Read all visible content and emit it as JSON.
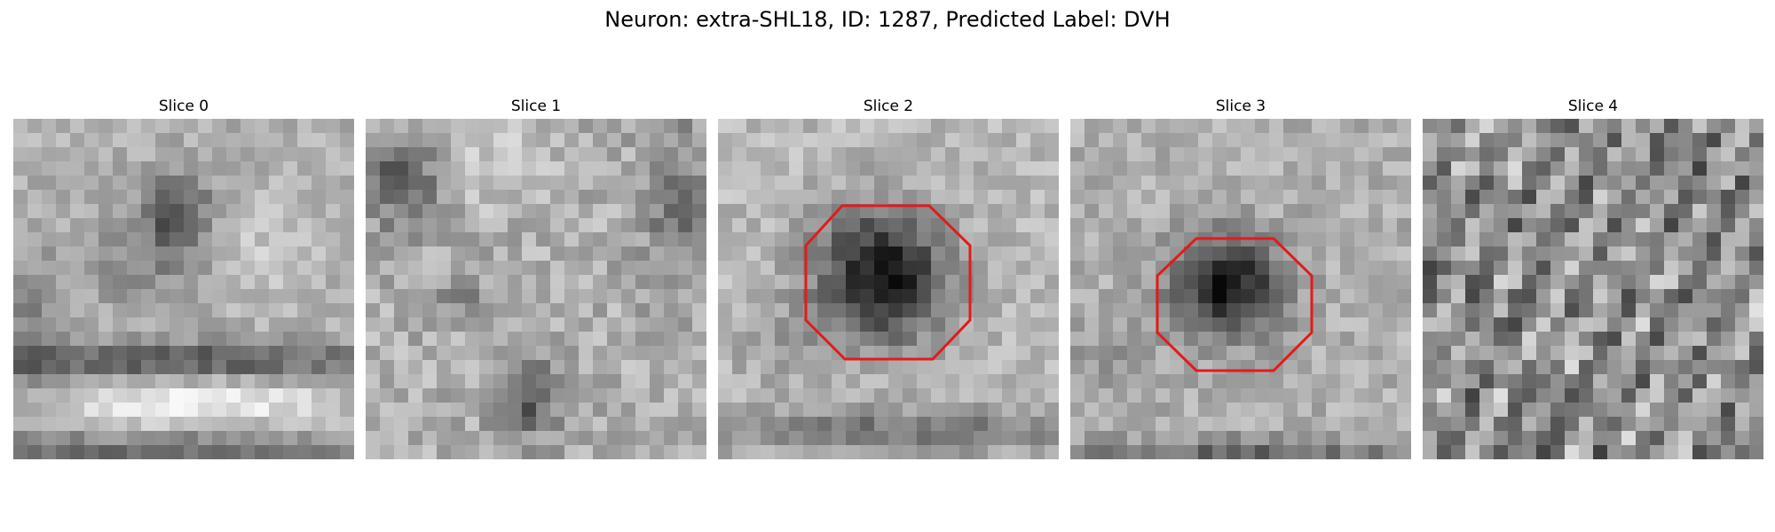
{
  "figure": {
    "title": "Neuron: extra-SHL18, ID: 1287, Predicted Label: DVH"
  },
  "panels": [
    {
      "title": "Slice 0",
      "outline": false
    },
    {
      "title": "Slice 1",
      "outline": false
    },
    {
      "title": "Slice 2",
      "outline": true
    },
    {
      "title": "Slice 3",
      "outline": true
    },
    {
      "title": "Slice 4",
      "outline": false
    }
  ],
  "colors": {
    "outline": "#e31a1c",
    "background": "#ffffff"
  }
}
